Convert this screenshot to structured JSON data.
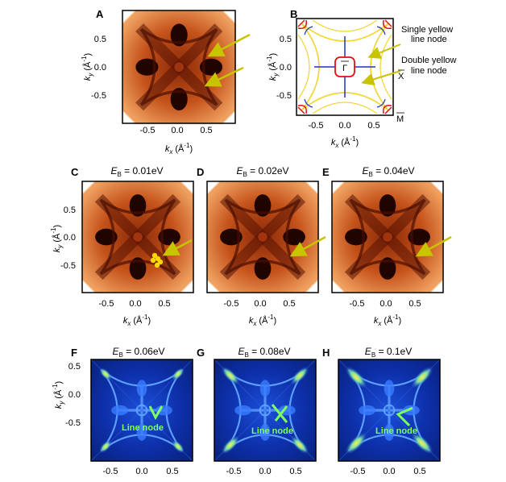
{
  "figure": {
    "axis_x": "k",
    "axis_x_sub": "x",
    "axis_y": "k",
    "axis_y_sub": "y",
    "axis_unit": "(Å",
    "axis_unit_exp": "-1",
    "axis_unit_close": ")",
    "ticks": [
      "-0.5",
      "0.0",
      "0.5"
    ],
    "panel_b": {
      "single_line_1": "Single yellow",
      "single_line_2": "line node",
      "double_line_1": "Double yellow",
      "double_line_2": "line node",
      "gamma": "Γ",
      "x_point": "X",
      "m_point": "M"
    },
    "panels": [
      {
        "letter": "A",
        "title_pre": "",
        "title_sub": "",
        "title_val": ""
      },
      {
        "letter": "B",
        "title_pre": "",
        "title_sub": "",
        "title_val": ""
      },
      {
        "letter": "C",
        "title_pre": "E",
        "title_sub": "B",
        "title_val": " = 0.01eV"
      },
      {
        "letter": "D",
        "title_pre": "E",
        "title_sub": "B",
        "title_val": " = 0.02eV"
      },
      {
        "letter": "E",
        "title_pre": "E",
        "title_sub": "B",
        "title_val": " = 0.04eV"
      },
      {
        "letter": "F",
        "title_pre": "E",
        "title_sub": "B",
        "title_val": " = 0.06eV",
        "note": "Line node"
      },
      {
        "letter": "G",
        "title_pre": "E",
        "title_sub": "B",
        "title_val": " = 0.08eV",
        "note": "Line node"
      },
      {
        "letter": "H",
        "title_pre": "E",
        "title_sub": "B",
        "title_val": " = 0.1eV",
        "note": "Line node"
      }
    ],
    "colors": {
      "arpes_dark": "#2a0500",
      "arpes_mid": "#c04010",
      "arpes_light": "#f6c088",
      "calc_dark": "#0a2a9a",
      "calc_light": "#4a8cff",
      "calc_hot": "#ffe840",
      "yellow_line": "#f2d630",
      "arrow": "#c8c400",
      "green": "#7dff60",
      "red_loop": "#e01010",
      "blue_line": "#2030c0"
    }
  }
}
